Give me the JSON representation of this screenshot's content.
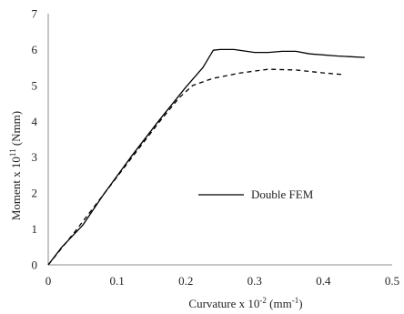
{
  "chart_data": {
    "type": "line",
    "title": "",
    "xlabel": {
      "main": "Curvature x 10",
      "exp": "-2",
      "unit_open": " (mm",
      "unit_exp": "-1",
      "unit_close": ")"
    },
    "ylabel": {
      "main": "Moment x 10",
      "exp": "11",
      "unit": " (Nmm)"
    },
    "xlim": [
      0,
      0.5
    ],
    "ylim": [
      0,
      7
    ],
    "x_ticks": [
      "0",
      "0.1",
      "0.2",
      "0.3",
      "0.4",
      "0.5"
    ],
    "y_ticks": [
      "0",
      "1",
      "2",
      "3",
      "4",
      "5",
      "6",
      "7"
    ],
    "grid": false,
    "legend_position": "center-right",
    "series": [
      {
        "name": "Double FEM",
        "style": "solid",
        "color": "#000000",
        "points": [
          [
            0,
            0
          ],
          [
            0.02,
            0.5
          ],
          [
            0.05,
            1.1
          ],
          [
            0.08,
            1.95
          ],
          [
            0.12,
            3.0
          ],
          [
            0.16,
            4.0
          ],
          [
            0.2,
            4.95
          ],
          [
            0.225,
            5.5
          ],
          [
            0.24,
            5.98
          ],
          [
            0.25,
            6.0
          ],
          [
            0.27,
            6.0
          ],
          [
            0.3,
            5.92
          ],
          [
            0.32,
            5.92
          ],
          [
            0.34,
            5.95
          ],
          [
            0.36,
            5.95
          ],
          [
            0.38,
            5.88
          ],
          [
            0.42,
            5.82
          ],
          [
            0.46,
            5.78
          ]
        ]
      },
      {
        "name": "",
        "style": "dashed",
        "color": "#000000",
        "points": [
          [
            0,
            0
          ],
          [
            0.04,
            0.95
          ],
          [
            0.08,
            1.95
          ],
          [
            0.12,
            2.95
          ],
          [
            0.16,
            3.95
          ],
          [
            0.19,
            4.65
          ],
          [
            0.21,
            5.0
          ],
          [
            0.24,
            5.2
          ],
          [
            0.28,
            5.35
          ],
          [
            0.32,
            5.45
          ],
          [
            0.36,
            5.43
          ],
          [
            0.4,
            5.35
          ],
          [
            0.43,
            5.3
          ]
        ]
      }
    ]
  }
}
